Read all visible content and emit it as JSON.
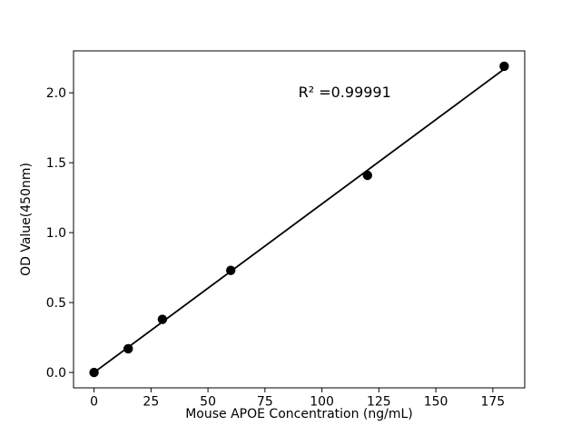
{
  "chart_data": {
    "type": "scatter",
    "title": "",
    "xlabel": "Mouse APOE Concentration (ng/mL)",
    "ylabel": "OD Value(450nm)",
    "annotation": {
      "text": "R² =0.99991",
      "x": 110,
      "y": 1.97,
      "r_squared": 0.99991
    },
    "x": [
      0,
      15,
      30,
      60,
      120,
      180
    ],
    "y": [
      0.0,
      0.17,
      0.38,
      0.73,
      1.41,
      2.19
    ],
    "trendline": {
      "x1": 0,
      "y1": 0.0,
      "x2": 180,
      "y2": 2.17
    },
    "xlim": [
      -9,
      189
    ],
    "ylim": [
      -0.11,
      2.3
    ],
    "xticks": [
      0,
      25,
      50,
      75,
      100,
      125,
      150,
      175
    ],
    "xtick_labels": [
      "0",
      "25",
      "50",
      "75",
      "100",
      "125",
      "150",
      "175"
    ],
    "yticks": [
      0.0,
      0.5,
      1.0,
      1.5,
      2.0
    ],
    "ytick_labels": [
      "0.0",
      "0.5",
      "1.0",
      "1.5",
      "2.0"
    ],
    "grid": false,
    "legend": null,
    "colors": {
      "marker": "#000000",
      "line": "#000000",
      "axis": "#000000",
      "text": "#000000",
      "background": "#ffffff"
    }
  }
}
